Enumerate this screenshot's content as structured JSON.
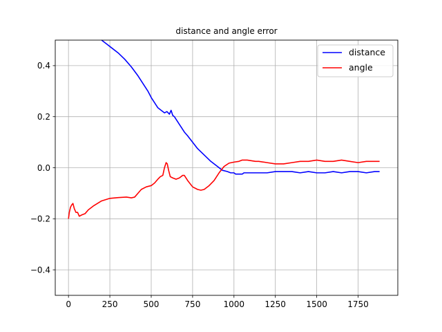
{
  "chart_data": {
    "type": "line",
    "title": "distance and angle error",
    "xlabel": "",
    "ylabel": "",
    "xlim": [
      -80,
      1990
    ],
    "ylim": [
      -0.5,
      0.5
    ],
    "xticks": [
      0,
      250,
      500,
      750,
      1000,
      1250,
      1500,
      1750
    ],
    "xtick_labels": [
      "0",
      "250",
      "500",
      "750",
      "1000",
      "1250",
      "1500",
      "1750"
    ],
    "yticks": [
      -0.4,
      -0.2,
      0.0,
      0.2,
      0.4
    ],
    "ytick_labels": [
      "−0.4",
      "−0.2",
      "0.0",
      "0.2",
      "0.4"
    ],
    "grid": true,
    "legend": "top-right",
    "series": [
      {
        "name": "distance",
        "color": "#0000ff",
        "x": [
          200,
          230,
          260,
          300,
          340,
          380,
          420,
          460,
          480,
          500,
          520,
          540,
          560,
          580,
          595,
          610,
          620,
          630,
          640,
          650,
          660,
          670,
          680,
          700,
          720,
          750,
          780,
          820,
          860,
          900,
          930,
          960,
          980,
          1000,
          1010,
          1030,
          1050,
          1060,
          1080,
          1100,
          1150,
          1200,
          1250,
          1300,
          1350,
          1400,
          1450,
          1500,
          1550,
          1600,
          1650,
          1700,
          1750,
          1800,
          1850,
          1880
        ],
        "y": [
          0.5,
          0.485,
          0.47,
          0.45,
          0.425,
          0.395,
          0.36,
          0.32,
          0.3,
          0.275,
          0.255,
          0.235,
          0.225,
          0.215,
          0.22,
          0.21,
          0.225,
          0.205,
          0.2,
          0.19,
          0.18,
          0.17,
          0.16,
          0.14,
          0.125,
          0.1,
          0.075,
          0.05,
          0.025,
          0.005,
          -0.01,
          -0.015,
          -0.02,
          -0.02,
          -0.025,
          -0.025,
          -0.025,
          -0.02,
          -0.02,
          -0.02,
          -0.02,
          -0.02,
          -0.015,
          -0.015,
          -0.015,
          -0.02,
          -0.015,
          -0.02,
          -0.02,
          -0.015,
          -0.02,
          -0.015,
          -0.015,
          -0.02,
          -0.015,
          -0.015
        ]
      },
      {
        "name": "angle",
        "color": "#ff0000",
        "x": [
          0,
          5,
          12,
          20,
          27,
          35,
          45,
          55,
          65,
          80,
          100,
          120,
          150,
          200,
          250,
          300,
          350,
          380,
          400,
          420,
          440,
          470,
          500,
          520,
          540,
          555,
          570,
          580,
          590,
          597,
          605,
          615,
          630,
          650,
          670,
          690,
          700,
          720,
          750,
          780,
          800,
          820,
          850,
          880,
          910,
          940,
          970,
          1000,
          1030,
          1050,
          1080,
          1100,
          1130,
          1150,
          1200,
          1250,
          1300,
          1350,
          1400,
          1450,
          1500,
          1550,
          1600,
          1650,
          1700,
          1750,
          1800,
          1850,
          1880
        ],
        "y": [
          -0.2,
          -0.175,
          -0.155,
          -0.145,
          -0.14,
          -0.16,
          -0.175,
          -0.175,
          -0.19,
          -0.185,
          -0.18,
          -0.165,
          -0.15,
          -0.13,
          -0.12,
          -0.117,
          -0.115,
          -0.118,
          -0.115,
          -0.1,
          -0.085,
          -0.075,
          -0.07,
          -0.06,
          -0.045,
          -0.035,
          -0.03,
          0.0,
          0.02,
          0.015,
          -0.01,
          -0.035,
          -0.04,
          -0.045,
          -0.04,
          -0.03,
          -0.03,
          -0.05,
          -0.075,
          -0.085,
          -0.088,
          -0.085,
          -0.07,
          -0.05,
          -0.02,
          0.005,
          0.018,
          0.022,
          0.025,
          0.03,
          0.03,
          0.028,
          0.025,
          0.025,
          0.02,
          0.015,
          0.015,
          0.02,
          0.025,
          0.025,
          0.03,
          0.025,
          0.025,
          0.03,
          0.025,
          0.02,
          0.025,
          0.025,
          0.025
        ]
      }
    ]
  }
}
